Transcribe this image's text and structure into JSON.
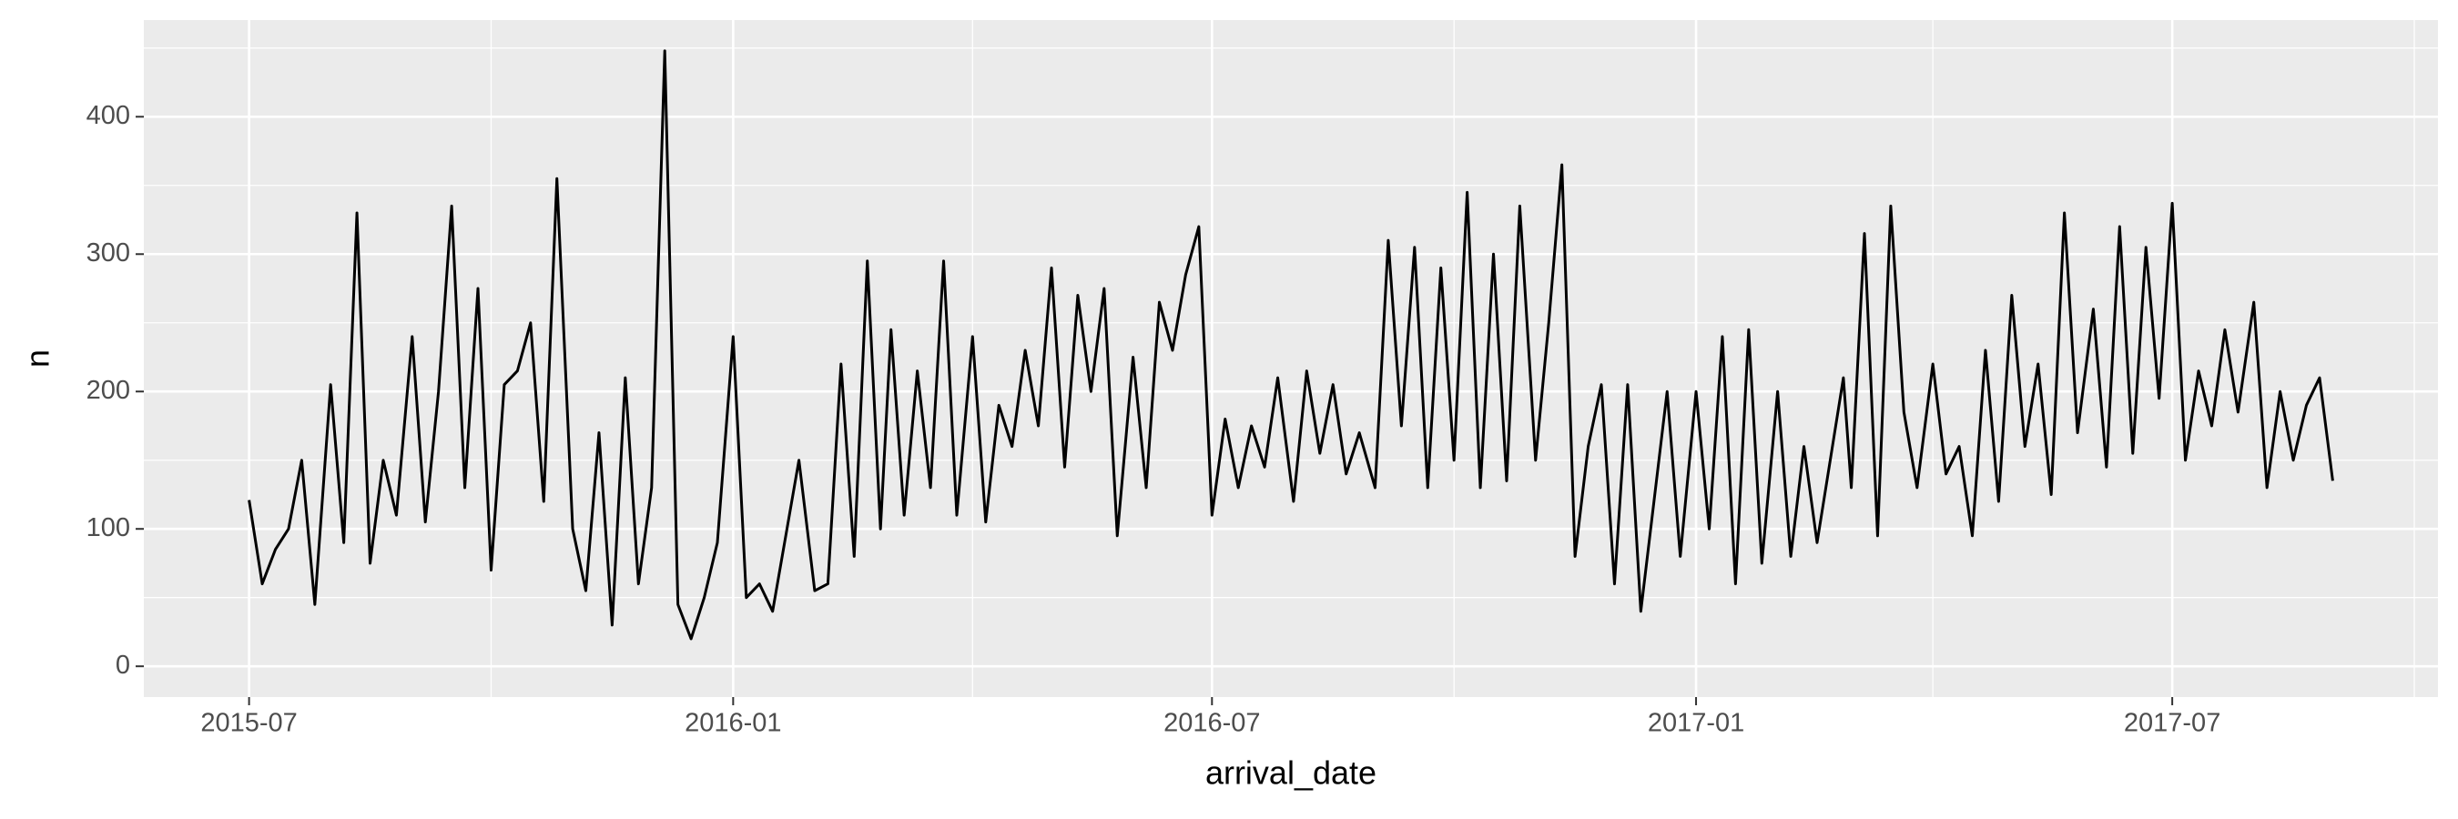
{
  "chart_data": {
    "type": "line",
    "xlabel": "arrival_date",
    "ylabel": "n",
    "color": "#000000",
    "grid": true,
    "x": [
      "2015-07-01",
      "2015-07-06",
      "2015-07-11",
      "2015-07-16",
      "2015-07-21",
      "2015-07-26",
      "2015-08-01",
      "2015-08-06",
      "2015-08-11",
      "2015-08-16",
      "2015-08-21",
      "2015-08-26",
      "2015-09-01",
      "2015-09-06",
      "2015-09-11",
      "2015-09-16",
      "2015-09-21",
      "2015-09-26",
      "2015-10-01",
      "2015-10-06",
      "2015-10-11",
      "2015-10-16",
      "2015-10-21",
      "2015-10-26",
      "2015-11-01",
      "2015-11-06",
      "2015-11-11",
      "2015-11-16",
      "2015-11-21",
      "2015-11-26",
      "2015-12-01",
      "2015-12-06",
      "2015-12-11",
      "2015-12-16",
      "2015-12-21",
      "2015-12-26",
      "2016-01-01",
      "2016-01-06",
      "2016-01-11",
      "2016-01-16",
      "2016-01-21",
      "2016-01-26",
      "2016-02-01",
      "2016-02-06",
      "2016-02-11",
      "2016-02-16",
      "2016-02-21",
      "2016-02-26",
      "2016-03-01",
      "2016-03-06",
      "2016-03-11",
      "2016-03-16",
      "2016-03-21",
      "2016-03-26",
      "2016-04-01",
      "2016-04-06",
      "2016-04-11",
      "2016-04-16",
      "2016-04-21",
      "2016-04-26",
      "2016-05-01",
      "2016-05-06",
      "2016-05-11",
      "2016-05-16",
      "2016-05-21",
      "2016-05-26",
      "2016-06-01",
      "2016-06-06",
      "2016-06-11",
      "2016-06-16",
      "2016-06-21",
      "2016-06-26",
      "2016-07-01",
      "2016-07-06",
      "2016-07-11",
      "2016-07-16",
      "2016-07-21",
      "2016-07-26",
      "2016-08-01",
      "2016-08-06",
      "2016-08-11",
      "2016-08-16",
      "2016-08-21",
      "2016-08-26",
      "2016-09-01",
      "2016-09-06",
      "2016-09-11",
      "2016-09-16",
      "2016-09-21",
      "2016-09-26",
      "2016-10-01",
      "2016-10-06",
      "2016-10-11",
      "2016-10-16",
      "2016-10-21",
      "2016-10-26",
      "2016-11-01",
      "2016-11-06",
      "2016-11-11",
      "2016-11-16",
      "2016-11-21",
      "2016-11-26",
      "2016-12-01",
      "2016-12-06",
      "2016-12-11",
      "2016-12-16",
      "2016-12-21",
      "2016-12-26",
      "2017-01-01",
      "2017-01-06",
      "2017-01-11",
      "2017-01-16",
      "2017-01-21",
      "2017-01-26",
      "2017-02-01",
      "2017-02-06",
      "2017-02-11",
      "2017-02-16",
      "2017-02-21",
      "2017-02-26",
      "2017-03-01",
      "2017-03-06",
      "2017-03-11",
      "2017-03-16",
      "2017-03-21",
      "2017-03-26",
      "2017-04-01",
      "2017-04-06",
      "2017-04-11",
      "2017-04-16",
      "2017-04-21",
      "2017-04-26",
      "2017-05-01",
      "2017-05-06",
      "2017-05-11",
      "2017-05-16",
      "2017-05-21",
      "2017-05-26",
      "2017-06-01",
      "2017-06-06",
      "2017-06-11",
      "2017-06-16",
      "2017-06-21",
      "2017-06-26",
      "2017-07-01",
      "2017-07-06",
      "2017-07-11",
      "2017-07-16",
      "2017-07-21",
      "2017-07-26",
      "2017-08-01",
      "2017-08-06",
      "2017-08-11",
      "2017-08-16",
      "2017-08-21",
      "2017-08-26",
      "2017-08-31"
    ],
    "values": [
      121,
      60,
      85,
      100,
      150,
      45,
      205,
      90,
      330,
      75,
      150,
      110,
      240,
      105,
      200,
      335,
      130,
      275,
      70,
      205,
      215,
      250,
      120,
      355,
      100,
      55,
      170,
      30,
      210,
      60,
      130,
      448,
      45,
      20,
      50,
      90,
      240,
      50,
      60,
      40,
      95,
      150,
      55,
      60,
      220,
      80,
      295,
      100,
      245,
      110,
      215,
      130,
      295,
      110,
      240,
      105,
      190,
      160,
      230,
      175,
      290,
      145,
      270,
      200,
      275,
      95,
      225,
      130,
      265,
      230,
      285,
      320,
      110,
      180,
      130,
      175,
      145,
      210,
      120,
      215,
      155,
      205,
      140,
      170,
      130,
      310,
      175,
      305,
      130,
      290,
      150,
      345,
      130,
      300,
      135,
      335,
      150,
      250,
      365,
      80,
      160,
      205,
      60,
      205,
      40,
      120,
      200,
      80,
      200,
      100,
      240,
      60,
      245,
      75,
      200,
      80,
      160,
      90,
      150,
      210,
      130,
      315,
      95,
      335,
      185,
      130,
      220,
      140,
      160,
      95,
      230,
      120,
      270,
      160,
      220,
      125,
      330,
      170,
      260,
      145,
      320,
      155,
      305,
      195,
      337,
      150,
      215,
      175,
      245,
      185,
      265,
      130,
      200,
      150,
      190,
      210,
      135
    ],
    "xlim": [
      "2015-05-22",
      "2017-10-10"
    ],
    "xticks": [
      {
        "value": "2015-07-01",
        "label": "2015-07"
      },
      {
        "value": "2016-01-01",
        "label": "2016-01"
      },
      {
        "value": "2016-07-01",
        "label": "2016-07"
      },
      {
        "value": "2017-01-01",
        "label": "2017-01"
      },
      {
        "value": "2017-07-01",
        "label": "2017-07"
      }
    ],
    "minor_xticks": [
      "2015-10-01",
      "2016-04-01",
      "2016-10-01",
      "2017-04-01",
      "2017-10-01"
    ],
    "ylim": [
      -22.4,
      470.4
    ],
    "yticks": [
      0,
      100,
      200,
      300,
      400
    ],
    "minor_yticks": [
      50,
      150,
      250,
      350,
      450
    ]
  }
}
